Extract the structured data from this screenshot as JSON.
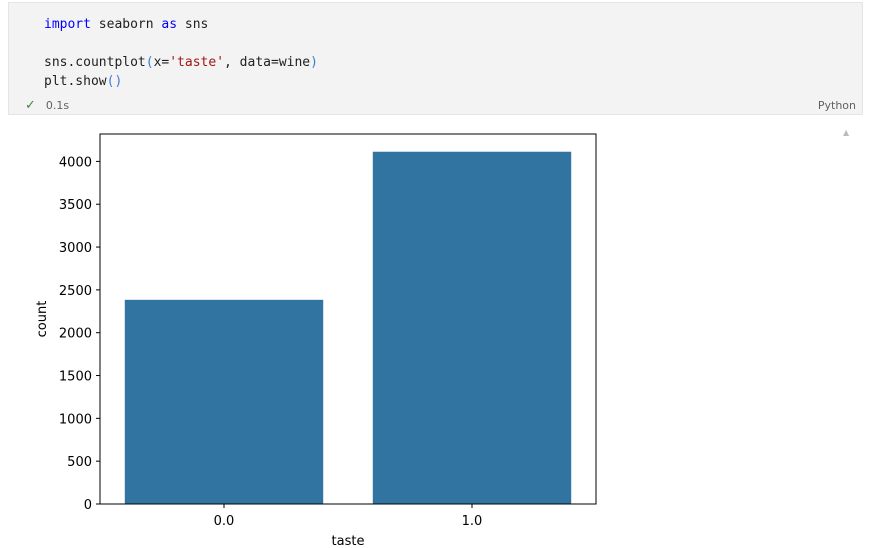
{
  "cell": {
    "code_lines": [
      [
        {
          "t": "import",
          "c": "kw"
        },
        {
          "t": " seaborn ",
          "c": ""
        },
        {
          "t": "as",
          "c": "kw"
        },
        {
          "t": " sns",
          "c": ""
        }
      ],
      [],
      [
        {
          "t": "sns.countplot",
          "c": ""
        },
        {
          "t": "(",
          "c": "par"
        },
        {
          "t": "x=",
          "c": ""
        },
        {
          "t": "'taste'",
          "c": "str"
        },
        {
          "t": ", data=wine",
          "c": ""
        },
        {
          "t": ")",
          "c": "par"
        }
      ],
      [
        {
          "t": "plt.show",
          "c": ""
        },
        {
          "t": "()",
          "c": "par"
        }
      ]
    ],
    "status_icon": "check-icon",
    "exec_time": "0.1s",
    "language": "Python"
  },
  "chart_data": {
    "type": "bar",
    "categories": [
      "0.0",
      "1.0"
    ],
    "values": [
      2384,
      4113
    ],
    "xlabel": "taste",
    "ylabel": "count",
    "ylim": [
      0,
      4320
    ],
    "yticks": [
      0,
      500,
      1000,
      1500,
      2000,
      2500,
      3000,
      3500,
      4000
    ],
    "color": "#3274a1",
    "grid": false
  }
}
